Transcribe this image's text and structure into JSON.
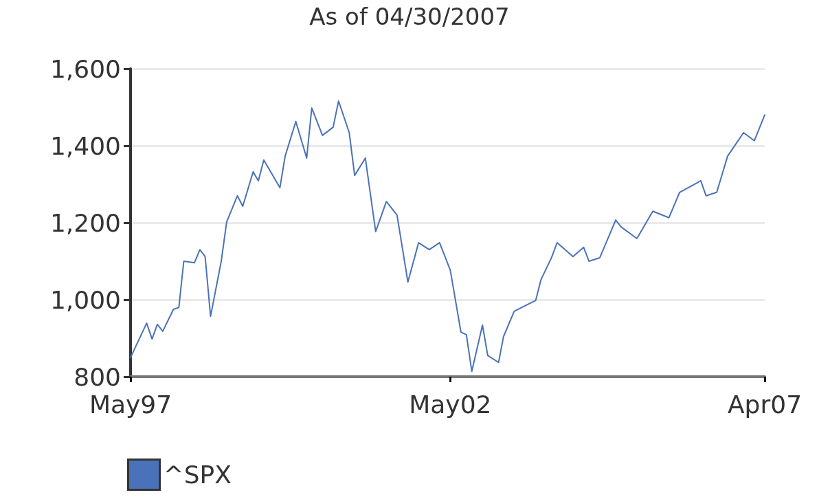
{
  "chart_data": {
    "type": "line",
    "title": "As of 04/30/2007",
    "x": [
      "1997-05",
      "1997-08",
      "1997-09",
      "1997-10",
      "1997-11",
      "1998-01",
      "1998-02",
      "1998-03",
      "1998-05",
      "1998-06",
      "1998-07",
      "1998-08",
      "1998-10",
      "1998-11",
      "1999-01",
      "1999-02",
      "1999-04",
      "1999-05",
      "1999-06",
      "1999-09",
      "1999-10",
      "1999-12",
      "2000-02",
      "2000-03",
      "2000-05",
      "2000-07",
      "2000-08",
      "2000-10",
      "2000-11",
      "2001-01",
      "2001-03",
      "2001-05",
      "2001-07",
      "2001-09",
      "2001-11",
      "2002-01",
      "2002-03",
      "2002-05",
      "2002-07",
      "2002-08",
      "2002-09",
      "2002-11",
      "2002-12",
      "2003-02",
      "2003-03",
      "2003-05",
      "2003-09",
      "2003-10",
      "2003-12",
      "2004-01",
      "2004-04",
      "2004-06",
      "2004-07",
      "2004-09",
      "2004-12",
      "2005-01",
      "2005-04",
      "2005-07",
      "2005-10",
      "2005-12",
      "2006-04",
      "2006-05",
      "2006-07",
      "2006-09",
      "2006-12",
      "2007-02",
      "2007-04"
    ],
    "series": [
      {
        "name": "^SPX",
        "color": "#4a72b8",
        "values": [
          850,
          939,
          898,
          936,
          918,
          975,
          980,
          1100,
          1096,
          1130,
          1112,
          957,
          1100,
          1202,
          1270,
          1243,
          1332,
          1309,
          1363,
          1291,
          1373,
          1463,
          1368,
          1498,
          1427,
          1448,
          1516,
          1434,
          1323,
          1368,
          1177,
          1255,
          1220,
          1046,
          1148,
          1130,
          1148,
          1077,
          916,
          909,
          814,
          934,
          855,
          837,
          904,
          970,
          998,
          1052,
          1110,
          1148,
          1112,
          1136,
          1100,
          1109,
          1207,
          1189,
          1159,
          1230,
          1213,
          1279,
          1309,
          1270,
          1279,
          1373,
          1434,
          1413,
          1480
        ]
      }
    ],
    "xlim": [
      "1997-05",
      "2007-04"
    ],
    "xticks": [
      {
        "value": "1997-05",
        "label": "May97"
      },
      {
        "value": "2002-05",
        "label": "May02"
      },
      {
        "value": "2007-04",
        "label": "Apr07"
      }
    ],
    "ylim": [
      800,
      1600
    ],
    "yticks": [
      800,
      {
        "value": 1000,
        "label": "1,000"
      },
      {
        "value": 1200,
        "label": "1,200"
      },
      {
        "value": 1400,
        "label": "1,400"
      },
      {
        "value": 1600,
        "label": "1,600"
      }
    ],
    "grid": "y",
    "legend": "bottom left",
    "marker": "none",
    "line_style": "solid"
  }
}
